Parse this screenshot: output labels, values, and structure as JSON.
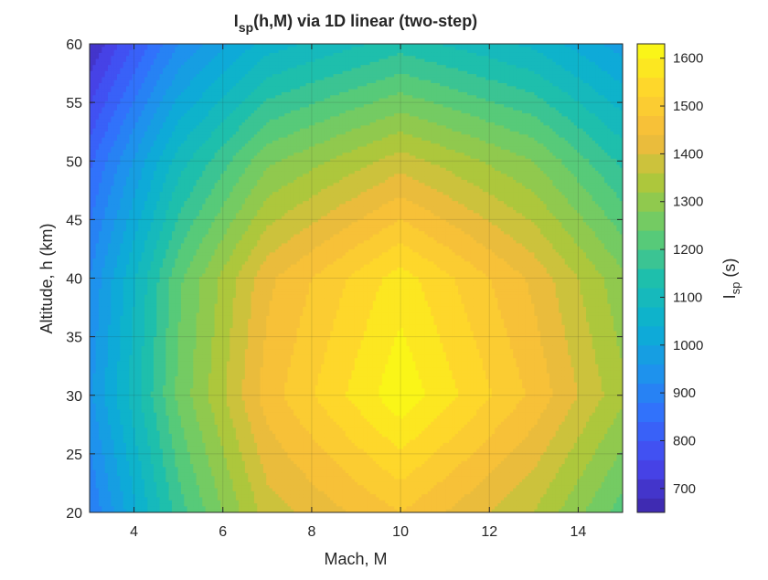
{
  "chart_data": {
    "type": "heatmap",
    "title": "I_sp(h,M) via 1D linear (two-step)",
    "title_parts": {
      "main": "I",
      "sub": "sp",
      "rest": "(h,M) via 1D linear (two-step)"
    },
    "xlabel": "Mach, M",
    "ylabel": "Altitude, h (km)",
    "colorbar_label": {
      "main": "I",
      "sub": "sp",
      "rest": " (s)"
    },
    "colormap": "parula",
    "grid": true,
    "colorbar_position": "right",
    "xlim": [
      3,
      15
    ],
    "ylim": [
      20,
      60
    ],
    "x": [
      3,
      5,
      7,
      10,
      13,
      15
    ],
    "y": [
      20,
      30,
      40,
      50,
      60
    ],
    "z": [
      [
        880,
        1180,
        1380,
        1480,
        1360,
        1220
      ],
      [
        950,
        1250,
        1460,
        1630,
        1470,
        1330
      ],
      [
        920,
        1230,
        1430,
        1580,
        1430,
        1290
      ],
      [
        830,
        1100,
        1270,
        1380,
        1280,
        1150
      ],
      [
        680,
        920,
        1060,
        1140,
        1070,
        980
      ]
    ],
    "clim": [
      650,
      1630
    ],
    "contour_levels": [
      680,
      720,
      760,
      800,
      840,
      880,
      920,
      960,
      1000,
      1040,
      1080,
      1120,
      1160,
      1200,
      1240,
      1280,
      1320,
      1360,
      1400,
      1440,
      1480,
      1520,
      1560,
      1600
    ],
    "xticks": [
      4,
      6,
      8,
      10,
      12,
      14
    ],
    "yticks": [
      20,
      25,
      30,
      35,
      40,
      45,
      50,
      55,
      60
    ],
    "colorbar_ticks": [
      700,
      800,
      900,
      1000,
      1100,
      1200,
      1300,
      1400,
      1500,
      1600
    ]
  }
}
